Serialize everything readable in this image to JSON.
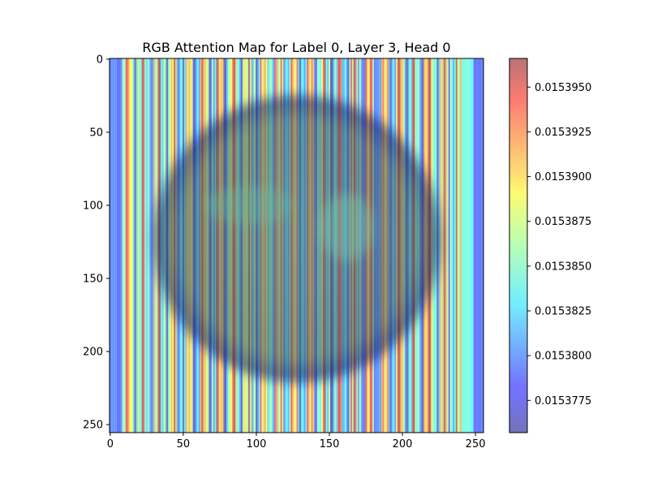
{
  "chart_data": {
    "type": "heatmap",
    "title": "RGB Attention Map for Label 0, Layer 3, Head 0",
    "xlabel": "",
    "ylabel": "",
    "x_range": [
      0,
      255
    ],
    "y_range": [
      0,
      255
    ],
    "y_inverted": true,
    "x_ticks": [
      0,
      50,
      100,
      150,
      200,
      250
    ],
    "y_ticks": [
      0,
      50,
      100,
      150,
      200,
      250
    ],
    "colormap": "jet",
    "overlay_alpha": 0.5,
    "colorbar": {
      "min": 0.0153757,
      "max": 0.0153966,
      "ticks": [
        "0.0153775",
        "0.0153800",
        "0.0153825",
        "0.0153850",
        "0.0153875",
        "0.0153900",
        "0.0153925",
        "0.0153950"
      ],
      "tick_values": [
        0.0153775,
        0.01538,
        0.0153825,
        0.015385,
        0.0153875,
        0.01539,
        0.0153925,
        0.015395
      ]
    },
    "stripe_pattern": "vertical-columns",
    "underlying_image": {
      "shape": "circle",
      "center": [
        128,
        123
      ],
      "radius": 100
    }
  }
}
